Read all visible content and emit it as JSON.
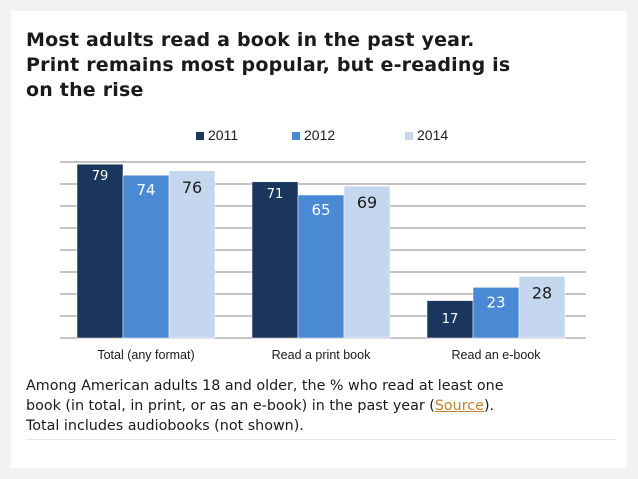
{
  "title": {
    "line1": "Most adults read a book in the past year.",
    "line2": "Print remains most popular, but e-reading is",
    "line3": "on the rise"
  },
  "caption": {
    "line1": "Among American adults 18 and older, the % who read at least one",
    "line2_pre": "book (in total, in print, or as an e-book) in the past year (",
    "link_text": "Source",
    "line2_post": ").",
    "line3": "Total includes audiobooks (not shown)."
  },
  "chart_data": {
    "type": "bar",
    "title": "Most adults read a book in the past year. Print remains most popular, but e-reading is on the rise",
    "categories": [
      "Total (any format)",
      "Read a print book",
      "Read an e-book"
    ],
    "series": [
      {
        "name": "2011",
        "values": [
          79,
          71,
          17
        ],
        "color": "#1b365d"
      },
      {
        "name": "2012",
        "values": [
          74,
          65,
          23
        ],
        "color": "#4a8ad4"
      },
      {
        "name": "2014",
        "values": [
          76,
          69,
          28
        ],
        "color": "#c5d7ee"
      }
    ],
    "ylim": [
      0,
      80
    ],
    "grid": true,
    "legend": "top",
    "xlabel": "",
    "ylabel": ""
  }
}
